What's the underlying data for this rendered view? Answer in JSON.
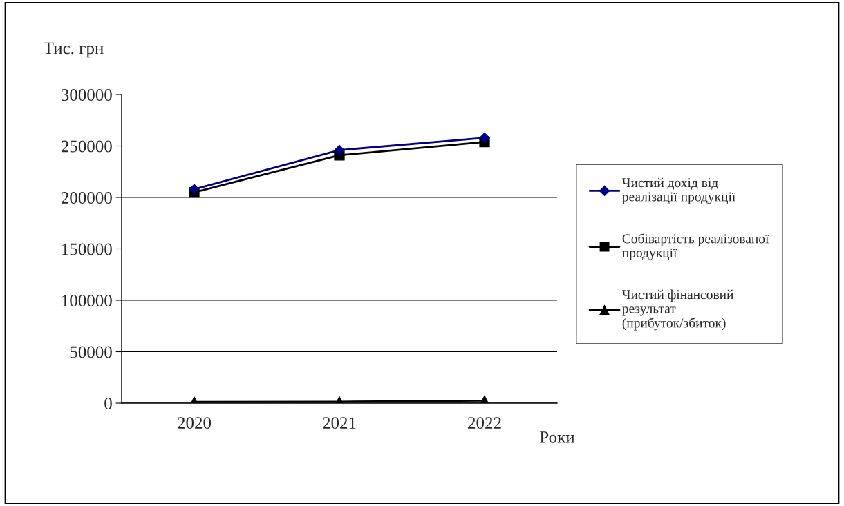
{
  "chart_data": {
    "type": "line",
    "ylabel": "Тис. грн",
    "xlabel": "Роки",
    "categories": [
      "2020",
      "2021",
      "2022"
    ],
    "series": [
      {
        "name": "Чистий дохід від реалізації продукції",
        "color": "#000080",
        "marker": "diamond",
        "values": [
          208000,
          246000,
          258000
        ]
      },
      {
        "name": "Собівартість реалізованої продукції",
        "color": "#000000",
        "marker": "square",
        "values": [
          205000,
          241000,
          254000
        ]
      },
      {
        "name": "Чистий фінансовий результат (прибуток/збиток)",
        "color": "#000000",
        "marker": "triangle",
        "values": [
          1200,
          1500,
          2400
        ]
      }
    ],
    "ylim": [
      0,
      300000
    ],
    "yticks": [
      0,
      50000,
      100000,
      150000,
      200000,
      250000,
      300000
    ],
    "grid": "y",
    "legend": "right",
    "line_style": "solid"
  }
}
